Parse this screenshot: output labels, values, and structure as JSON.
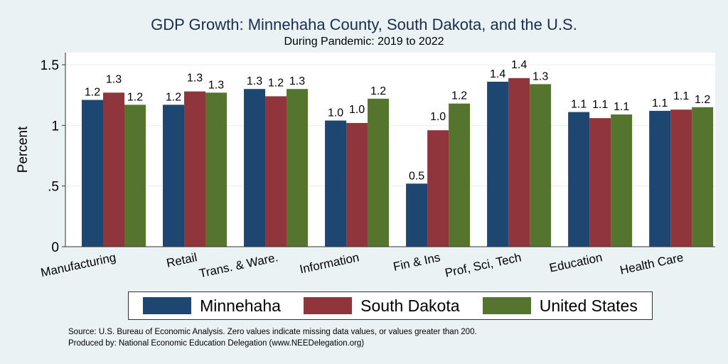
{
  "chart_data": {
    "type": "bar",
    "title": "GDP Growth: Minnehaha County, South Dakota, and the U.S.",
    "subtitle": "During Pandemic: 2019 to 2022",
    "xlabel": "",
    "ylabel": "Percent",
    "ylim": [
      0,
      1.6
    ],
    "yticks": [
      0,
      0.5,
      1,
      1.5
    ],
    "ytick_labels": [
      "0",
      ".5",
      "1",
      "1.5"
    ],
    "grid": true,
    "legend_position": "bottom",
    "categories": [
      "Manufacturing",
      "Retail",
      "Trans. & Ware.",
      "Information",
      "Fin & Ins",
      "Prof, Sci, Tech",
      "Education",
      "Health Care"
    ],
    "series": [
      {
        "name": "Minnehaha",
        "color": "#1d4771",
        "values": [
          1.21,
          1.17,
          1.3,
          1.04,
          0.52,
          1.36,
          1.11,
          1.12
        ],
        "labels": [
          "1.2",
          "1.2",
          "1.3",
          "1.0",
          "0.5",
          "1.4",
          "1.1",
          "1.1"
        ]
      },
      {
        "name": "South Dakota",
        "color": "#90353b",
        "values": [
          1.27,
          1.28,
          1.24,
          1.02,
          0.96,
          1.39,
          1.06,
          1.13
        ],
        "labels": [
          "1.3",
          "1.3",
          "1.2",
          "1.0",
          "1.0",
          "1.4",
          "1.1",
          "1.1"
        ]
      },
      {
        "name": "United States",
        "color": "#55752f",
        "values": [
          1.17,
          1.27,
          1.3,
          1.22,
          1.18,
          1.34,
          1.09,
          1.15
        ],
        "labels": [
          "1.2",
          "1.3",
          "1.3",
          "1.2",
          "1.2",
          "1.3",
          "1.1",
          "1.2"
        ]
      }
    ]
  },
  "notes": {
    "source": "Source: U.S. Bureau of Economic Analysis. Zero values indicate missing data values, or values greater than 200.",
    "produced": "Produced by: National Economic Education Delegation (www.NEEDelegation.org)"
  }
}
